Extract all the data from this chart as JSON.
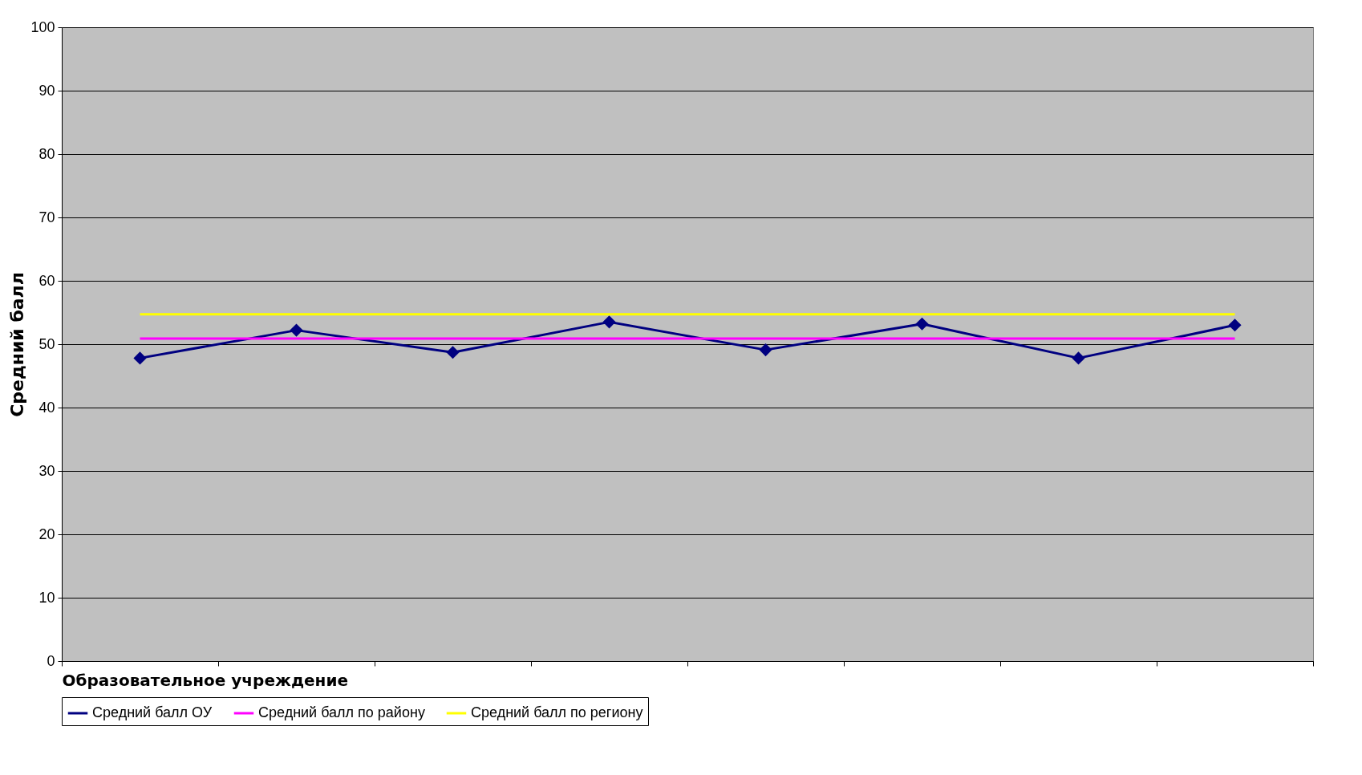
{
  "chart_data": {
    "type": "line",
    "xlabel": "Образовательное учреждение",
    "ylabel": "Средний балл",
    "categories": [
      null,
      null,
      null,
      null,
      null,
      null,
      null,
      null
    ],
    "ylim": [
      0,
      100
    ],
    "yticks": [
      0,
      10,
      20,
      30,
      40,
      50,
      60,
      70,
      80,
      90,
      100
    ],
    "grid": "y",
    "legend": "bottom",
    "series": [
      {
        "name": "Средний балл ОУ",
        "color": "#000080",
        "marker": "diamond",
        "values": [
          47.8,
          52.2,
          48.7,
          53.5,
          49.1,
          53.2,
          47.8,
          53.0
        ]
      },
      {
        "name": "Средний балл по району",
        "color": "#ff00ff",
        "marker": "none",
        "values": [
          50.9,
          50.9,
          50.9,
          50.9,
          50.9,
          50.9,
          50.9,
          50.9
        ]
      },
      {
        "name": "Средний балл по региону",
        "color": "#ffff00",
        "marker": "none",
        "values": [
          54.7,
          54.7,
          54.7,
          54.7,
          54.7,
          54.7,
          54.7,
          54.7
        ]
      }
    ]
  }
}
